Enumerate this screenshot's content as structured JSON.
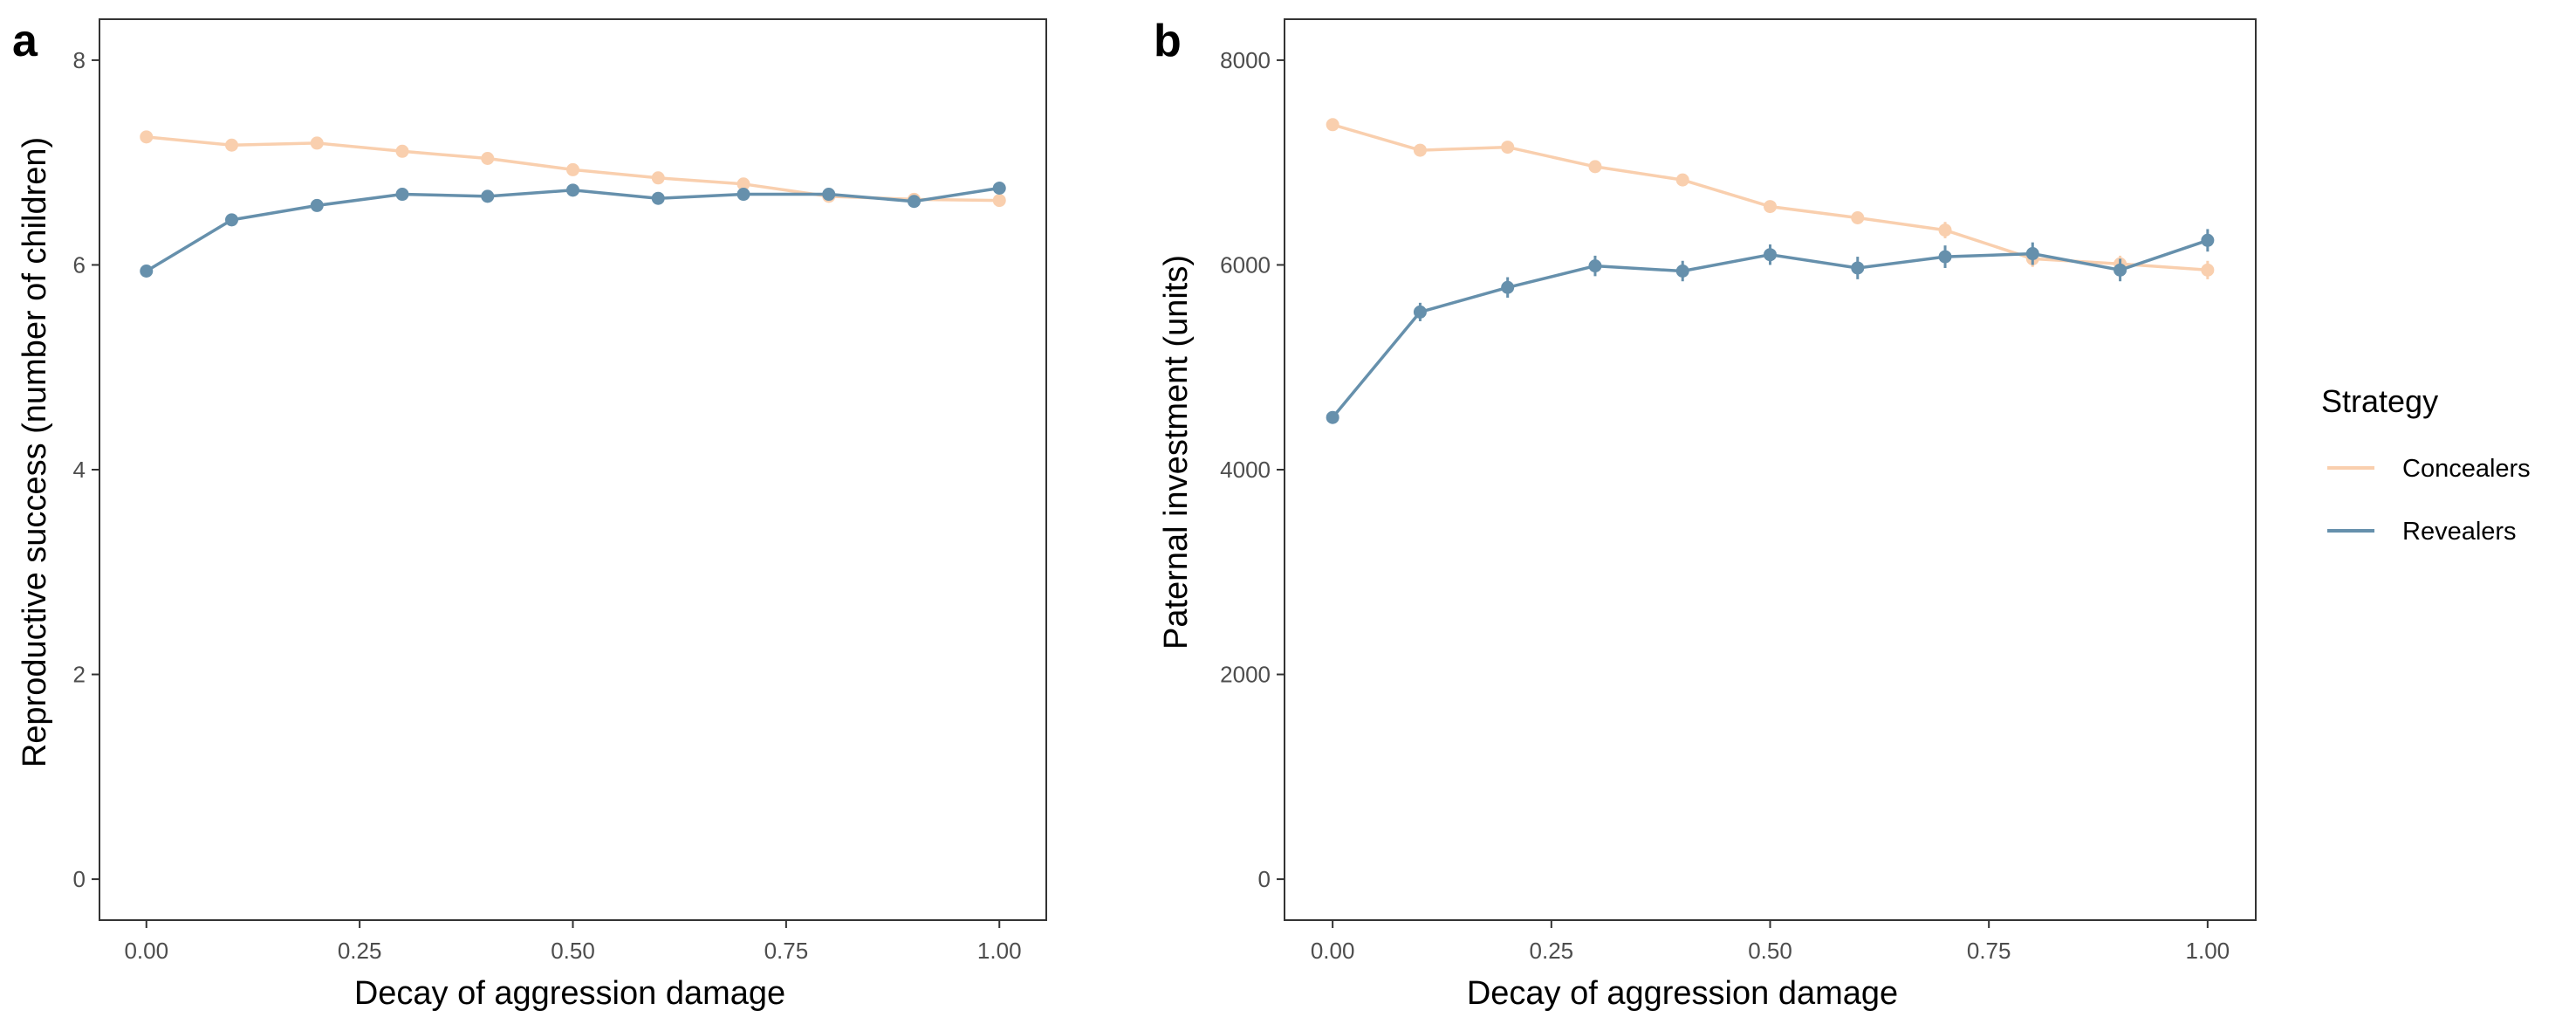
{
  "chart_data": [
    {
      "type": "line",
      "panel_label": "a",
      "xlabel": "Decay of aggression damage",
      "ylabel": "Reproductive success (number of children)",
      "xlim": [
        -0.055,
        1.055
      ],
      "ylim": [
        -0.4,
        8.4
      ],
      "x_ticks": [
        0.0,
        0.25,
        0.5,
        0.75,
        1.0
      ],
      "x_tick_labels": [
        "0.00",
        "0.25",
        "0.50",
        "0.75",
        "1.00"
      ],
      "y_ticks": [
        0,
        2,
        4,
        6,
        8
      ],
      "y_tick_labels": [
        "0",
        "2",
        "4",
        "6",
        "8"
      ],
      "grid": false,
      "x": [
        0.0,
        0.1,
        0.2,
        0.3,
        0.4,
        0.5,
        0.6,
        0.7,
        0.8,
        0.9,
        1.0
      ],
      "series": [
        {
          "key": "concealers",
          "values": [
            7.25,
            7.17,
            7.19,
            7.11,
            7.04,
            6.93,
            6.85,
            6.79,
            6.67,
            6.64,
            6.63
          ],
          "error": [
            0.04,
            0.04,
            0.04,
            0.04,
            0.04,
            0.04,
            0.04,
            0.04,
            0.04,
            0.04,
            0.04
          ]
        },
        {
          "key": "revealers",
          "values": [
            5.94,
            6.44,
            6.58,
            6.69,
            6.67,
            6.73,
            6.65,
            6.69,
            6.69,
            6.62,
            6.75
          ],
          "error": [
            0.04,
            0.04,
            0.04,
            0.04,
            0.04,
            0.04,
            0.04,
            0.04,
            0.04,
            0.04,
            0.04
          ]
        }
      ]
    },
    {
      "type": "line",
      "panel_label": "b",
      "xlabel": "Decay of aggression damage",
      "ylabel": "Paternal investment (units)",
      "xlim": [
        -0.055,
        1.055
      ],
      "ylim": [
        -400,
        8400
      ],
      "x_ticks": [
        0.0,
        0.25,
        0.5,
        0.75,
        1.0
      ],
      "x_tick_labels": [
        "0.00",
        "0.25",
        "0.50",
        "0.75",
        "1.00"
      ],
      "y_ticks": [
        0,
        2000,
        4000,
        6000,
        8000
      ],
      "y_tick_labels": [
        "0",
        "2000",
        "4000",
        "6000",
        "8000"
      ],
      "grid": false,
      "x": [
        0.0,
        0.1,
        0.2,
        0.3,
        0.4,
        0.5,
        0.6,
        0.7,
        0.8,
        0.9,
        1.0
      ],
      "series": [
        {
          "key": "concealers",
          "values": [
            7370,
            7120,
            7150,
            6960,
            6830,
            6570,
            6460,
            6340,
            6060,
            6010,
            5950
          ],
          "error": [
            60,
            60,
            60,
            60,
            60,
            60,
            60,
            80,
            80,
            80,
            90
          ]
        },
        {
          "key": "revealers",
          "values": [
            4510,
            5540,
            5780,
            5990,
            5940,
            6100,
            5970,
            6080,
            6110,
            5950,
            6240
          ],
          "error": [
            60,
            90,
            100,
            100,
            100,
            100,
            110,
            110,
            110,
            110,
            110
          ]
        }
      ]
    }
  ],
  "legend": {
    "title": "Strategy",
    "position": "right",
    "items": [
      {
        "key": "concealers",
        "label": "Concealers",
        "color": "#f9cfae"
      },
      {
        "key": "revealers",
        "label": "Revealers",
        "color": "#6690ac"
      }
    ]
  },
  "colors": {
    "concealers": "#f9cfae",
    "revealers": "#6690ac",
    "panel_border": "#333333",
    "tick_text": "#4d4d4d"
  }
}
